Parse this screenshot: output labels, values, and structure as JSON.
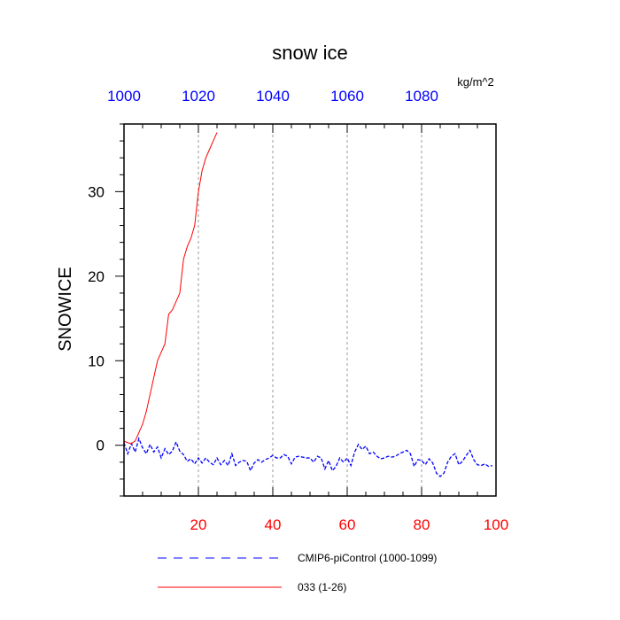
{
  "chart_data": {
    "type": "line",
    "title": "snow ice",
    "units": "kg/m^2",
    "ylabel": "SNOWICE",
    "xlabel": "",
    "xlim": [
      0,
      100
    ],
    "ylim": [
      -6,
      38
    ],
    "top_xlim": [
      1000,
      1100
    ],
    "x_ticks": [
      20,
      40,
      60,
      80,
      100
    ],
    "top_ticks": [
      1000,
      1020,
      1040,
      1060,
      1080
    ],
    "y_ticks": [
      0,
      10,
      20,
      30
    ],
    "gridlines_x": [
      20,
      40,
      60,
      80
    ],
    "x_tick_color": "#ff0000",
    "top_tick_color": "#0000ff",
    "series": [
      {
        "name": "CMIP6-piControl (1000-1099)",
        "color": "#0000ff",
        "dash": "dashed",
        "x": [
          0,
          1,
          2,
          3,
          4,
          5,
          6,
          7,
          8,
          9,
          10,
          11,
          12,
          13,
          14,
          15,
          16,
          17,
          18,
          19,
          20,
          21,
          22,
          23,
          24,
          25,
          26,
          27,
          28,
          29,
          30,
          31,
          32,
          33,
          34,
          35,
          36,
          37,
          38,
          39,
          40,
          41,
          42,
          43,
          44,
          45,
          46,
          47,
          48,
          49,
          50,
          51,
          52,
          53,
          54,
          55,
          56,
          57,
          58,
          59,
          60,
          61,
          62,
          63,
          64,
          65,
          66,
          67,
          68,
          69,
          70,
          71,
          72,
          73,
          74,
          75,
          76,
          77,
          78,
          79,
          80,
          81,
          82,
          83,
          84,
          85,
          86,
          87,
          88,
          89,
          90,
          91,
          92,
          93,
          94,
          95,
          96,
          97,
          98,
          99
        ],
        "values": [
          0.3,
          -1.0,
          0.2,
          -0.8,
          0.8,
          -0.3,
          -1.0,
          0.1,
          -0.8,
          -0.2,
          -1.5,
          -0.4,
          -1.1,
          -0.7,
          0.4,
          -0.7,
          -1.1,
          -1.9,
          -1.6,
          -2.2,
          -1.5,
          -2.1,
          -1.5,
          -2.0,
          -2.3,
          -1.5,
          -2.3,
          -1.8,
          -2.4,
          -1.0,
          -2.4,
          -2.0,
          -1.8,
          -1.9,
          -3.0,
          -2.1,
          -1.7,
          -2.0,
          -1.7,
          -1.5,
          -1.2,
          -1.5,
          -1.5,
          -1.1,
          -1.3,
          -2.2,
          -1.4,
          -1.3,
          -1.4,
          -1.5,
          -1.5,
          -2.0,
          -1.3,
          -1.5,
          -2.8,
          -1.8,
          -3.0,
          -2.5,
          -1.5,
          -2.0,
          -1.5,
          -2.4,
          -0.8,
          0.1,
          -0.5,
          -0.1,
          -1.0,
          -0.8,
          -1.3,
          -1.6,
          -1.5,
          -1.3,
          -1.4,
          -1.3,
          -1.0,
          -0.8,
          -0.6,
          -1.0,
          -2.5,
          -1.7,
          -1.8,
          -2.3,
          -1.6,
          -2.1,
          -3.3,
          -3.7,
          -3.3,
          -2.0,
          -1.3,
          -1.0,
          -2.3,
          -1.9,
          -1.2,
          -0.6,
          -1.7,
          -2.3,
          -2.4,
          -2.2,
          -2.5,
          -2.4
        ]
      },
      {
        "name": "033 (1-26)",
        "color": "#ff0000",
        "dash": "solid",
        "x": [
          0,
          1,
          2,
          3,
          4,
          5,
          6,
          7,
          8,
          9,
          10,
          11,
          12,
          13,
          14,
          15,
          16,
          17,
          18,
          19,
          20,
          21,
          22,
          23,
          24,
          25
        ],
        "values": [
          0.5,
          0.3,
          0.2,
          0.5,
          1.5,
          2.5,
          4.0,
          6.0,
          8.0,
          10.0,
          11.0,
          12.0,
          15.5,
          16.0,
          17.0,
          18.0,
          22.0,
          23.5,
          24.5,
          26.0,
          30.0,
          32.5,
          34.0,
          35.0,
          36.0,
          37.0
        ]
      }
    ],
    "legend": {
      "position": "bottom",
      "entries": [
        "CMIP6-piControl (1000-1099)",
        "033 (1-26)"
      ]
    }
  }
}
